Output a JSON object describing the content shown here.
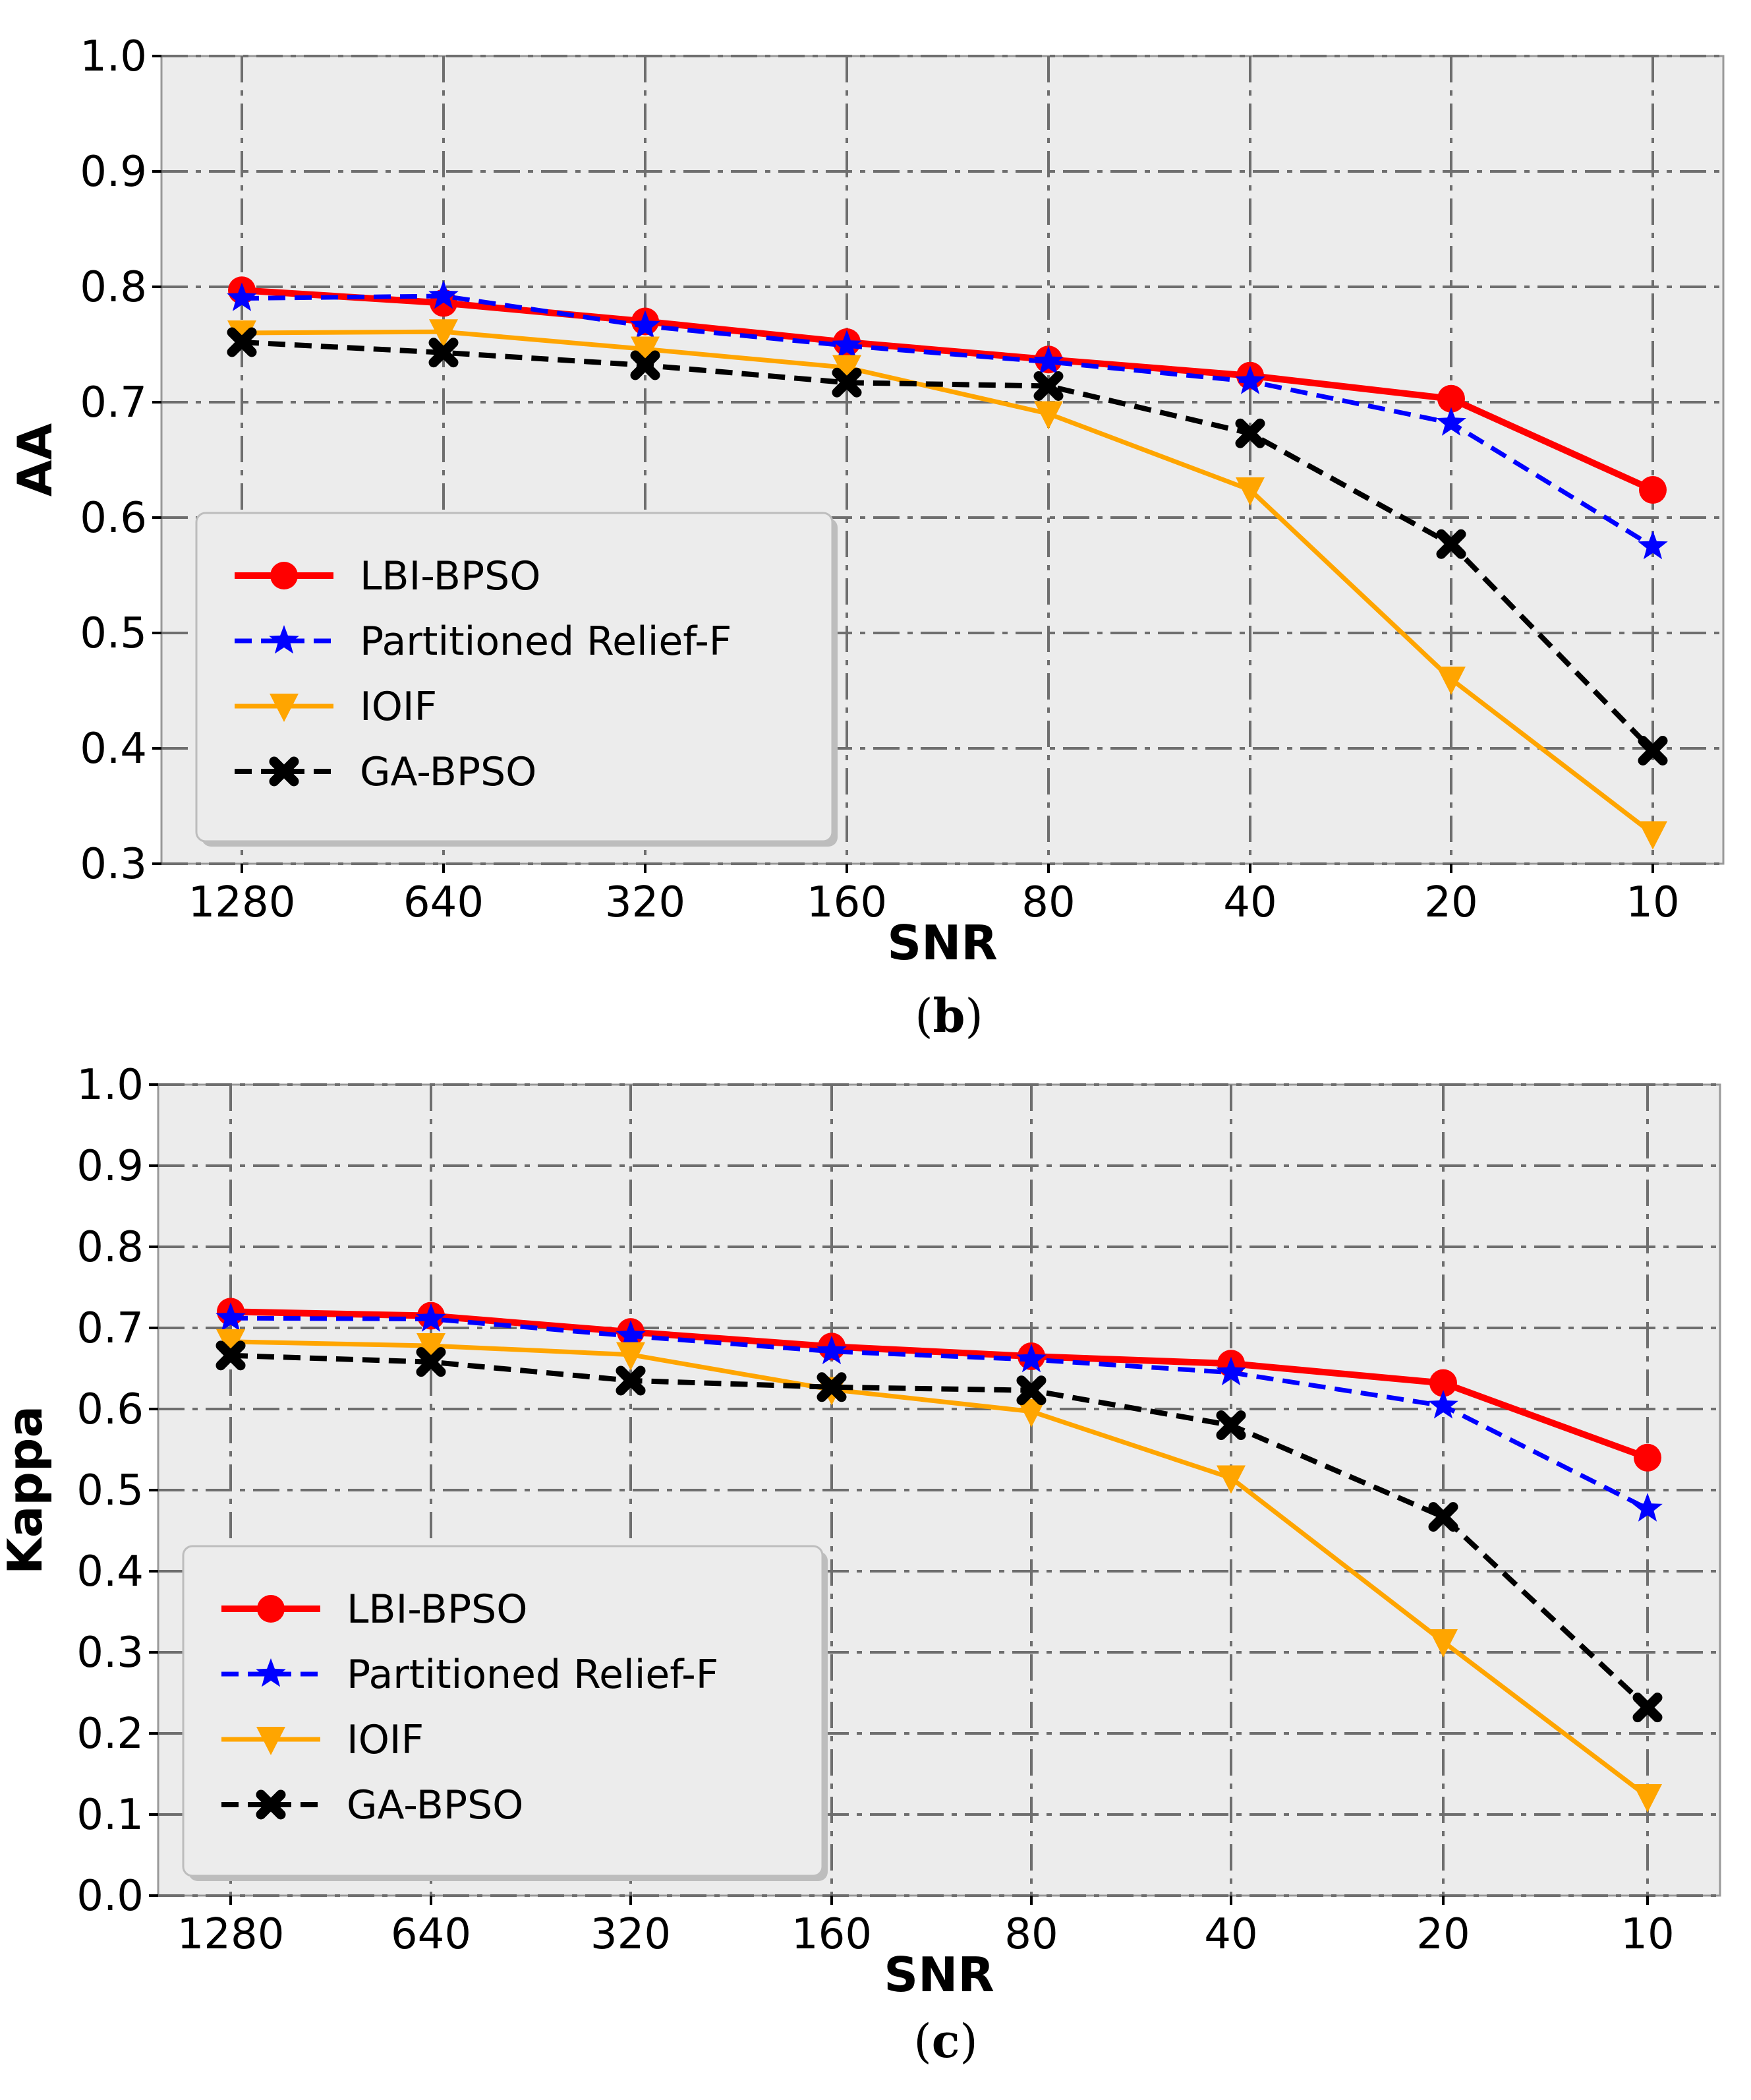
{
  "chart_data": [
    {
      "type": "line",
      "panel_label": "b",
      "xlabel": "SNR",
      "ylabel": "AA",
      "categories": [
        "1280",
        "640",
        "320",
        "160",
        "80",
        "40",
        "20",
        "10"
      ],
      "ylim": [
        0.3,
        1.0
      ],
      "yticks": [
        "0.3",
        "0.4",
        "0.5",
        "0.6",
        "0.7",
        "0.8",
        "0.9",
        "1.0"
      ],
      "grid": true,
      "legend_position": "lower-left",
      "series": [
        {
          "name": "LBI-BPSO",
          "color": "#ff0000",
          "marker": "circle",
          "linestyle": "solid",
          "values": [
            0.797,
            0.786,
            0.77,
            0.752,
            0.737,
            0.723,
            0.703,
            0.624
          ]
        },
        {
          "name": "Partitioned Relief-F",
          "color": "#0000ff",
          "marker": "star",
          "linestyle": "dashed",
          "values": [
            0.79,
            0.792,
            0.766,
            0.749,
            0.735,
            0.718,
            0.682,
            0.575
          ]
        },
        {
          "name": "IOIF",
          "color": "#ffa500",
          "marker": "triangle-down",
          "linestyle": "solid",
          "values": [
            0.76,
            0.761,
            0.746,
            0.73,
            0.69,
            0.624,
            0.46,
            0.326
          ]
        },
        {
          "name": "GA-BPSO",
          "color": "#000000",
          "marker": "x",
          "linestyle": "dashed",
          "values": [
            0.752,
            0.743,
            0.732,
            0.717,
            0.714,
            0.673,
            0.577,
            0.398
          ]
        }
      ]
    },
    {
      "type": "line",
      "panel_label": "c",
      "xlabel": "SNR",
      "ylabel": "Kappa",
      "categories": [
        "1280",
        "640",
        "320",
        "160",
        "80",
        "40",
        "20",
        "10"
      ],
      "ylim": [
        0.0,
        1.0
      ],
      "yticks": [
        "0.0",
        "0.1",
        "0.2",
        "0.3",
        "0.4",
        "0.5",
        "0.6",
        "0.7",
        "0.8",
        "0.9",
        "1.0"
      ],
      "grid": true,
      "legend_position": "lower-left",
      "series": [
        {
          "name": "LBI-BPSO",
          "color": "#ff0000",
          "marker": "circle",
          "linestyle": "solid",
          "values": [
            0.72,
            0.715,
            0.695,
            0.677,
            0.665,
            0.656,
            0.632,
            0.54
          ]
        },
        {
          "name": "Partitioned Relief-F",
          "color": "#0000ff",
          "marker": "star",
          "linestyle": "dashed",
          "values": [
            0.712,
            0.711,
            0.69,
            0.671,
            0.661,
            0.645,
            0.604,
            0.477
          ]
        },
        {
          "name": "IOIF",
          "color": "#ffa500",
          "marker": "triangle-down",
          "linestyle": "solid",
          "values": [
            0.683,
            0.678,
            0.667,
            0.624,
            0.597,
            0.515,
            0.313,
            0.122
          ]
        },
        {
          "name": "GA-BPSO",
          "color": "#000000",
          "marker": "x",
          "linestyle": "dashed",
          "values": [
            0.666,
            0.658,
            0.635,
            0.627,
            0.623,
            0.58,
            0.467,
            0.232
          ]
        }
      ]
    }
  ]
}
